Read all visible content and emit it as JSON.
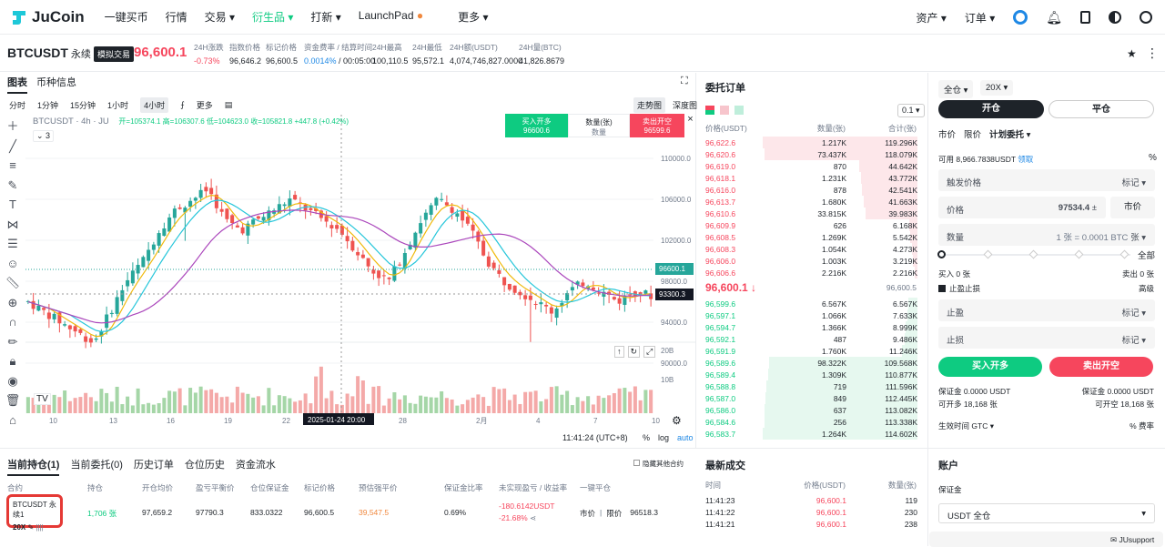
{
  "nav": {
    "brand": "JuCoin",
    "menu": [
      "一键买币",
      "行情",
      "交易",
      "衍生品",
      "打新",
      "LaunchPad",
      "更多"
    ],
    "active": "衍生品",
    "right": [
      "资产",
      "订单"
    ]
  },
  "ticker": {
    "symbol": "BTCUSDT",
    "type": "永续",
    "sim": "模拟交易",
    "price": "96,600.1",
    "stats": [
      {
        "l": "24H涨跌",
        "v": "-0.73%"
      },
      {
        "l": "指数价格",
        "v": "96,646.2"
      },
      {
        "l": "标记价格",
        "v": "96,600.5"
      },
      {
        "l": "资金费率 / 结算时间",
        "v": "0.0014%",
        "v2": "/ 00:05:00"
      },
      {
        "l": "24H最高",
        "v": "100,110.5"
      },
      {
        "l": "24H最低",
        "v": "95,572.1"
      },
      {
        "l": "24H额(USDT)",
        "v": "4,074,746,827.0000"
      },
      {
        "l": "24H量(BTC)",
        "v": "41,826.8679"
      }
    ]
  },
  "chart": {
    "tabs": [
      "图表",
      "币种信息"
    ],
    "intervals": [
      "分时",
      "1分钟",
      "15分钟",
      "1小时",
      "4小时",
      "更多"
    ],
    "active": "4小时",
    "views": [
      "走势图",
      "深度图"
    ],
    "legend": "BTCUSDT · 4h · JU",
    "ohlc": "开=105374.1 高=106307.6 低=104623.0 收=105821.8 +447.8 (+0.42%)",
    "ind": "3",
    "buy": {
      "l": "买入开多",
      "p": "96600.6"
    },
    "qty": {
      "l": "数量(张)",
      "v": "数量"
    },
    "sell": {
      "l": "卖出开空",
      "p": "96599.6"
    },
    "yticks": [
      "110000.0",
      "106000.0",
      "102000.0",
      "98000.0",
      "94000.0",
      "90000.0"
    ],
    "last": "96600.1",
    "cross": "93300.3",
    "vticks": [
      "20B",
      "10B"
    ],
    "xticks": [
      "10",
      "13",
      "16",
      "19",
      "22",
      "28",
      "2月",
      "4",
      "7",
      "10"
    ],
    "xcross": "2025-01-24  20:00",
    "time": "11:41:24 (UTC+8)",
    "opts": [
      "%",
      "log",
      "auto"
    ]
  },
  "book": {
    "title": "委托订单",
    "step": "0.1",
    "hdr": [
      "价格(USDT)",
      "数量(张)",
      "合计(张)"
    ],
    "asks": [
      [
        "96,622.6",
        "1.217K",
        "119.296K"
      ],
      [
        "96,620.6",
        "73.437K",
        "118.079K"
      ],
      [
        "96,619.0",
        "870",
        "44.642K"
      ],
      [
        "96,618.1",
        "1.231K",
        "43.772K"
      ],
      [
        "96,616.0",
        "878",
        "42.541K"
      ],
      [
        "96,613.7",
        "1.680K",
        "41.663K"
      ],
      [
        "96,610.6",
        "33.815K",
        "39.983K"
      ],
      [
        "96,609.9",
        "626",
        "6.168K"
      ],
      [
        "96,608.5",
        "1.269K",
        "5.542K"
      ],
      [
        "96,608.3",
        "1.054K",
        "4.273K"
      ],
      [
        "96,606.0",
        "1.003K",
        "3.219K"
      ],
      [
        "96,606.6",
        "2.216K",
        "2.216K"
      ]
    ],
    "mid": "96,600.1",
    "mark": "96,600.5",
    "bids": [
      [
        "96,599.6",
        "6.567K",
        "6.567K"
      ],
      [
        "96,597.1",
        "1.066K",
        "7.633K"
      ],
      [
        "96,594.7",
        "1.366K",
        "8.999K"
      ],
      [
        "96,592.1",
        "487",
        "9.486K"
      ],
      [
        "96,591.9",
        "1.760K",
        "11.246K"
      ],
      [
        "96,589.6",
        "98.322K",
        "109.568K"
      ],
      [
        "96,589.4",
        "1.309K",
        "110.877K"
      ],
      [
        "96,588.8",
        "719",
        "111.596K"
      ],
      [
        "96,587.0",
        "849",
        "112.445K"
      ],
      [
        "96,586.0",
        "637",
        "113.082K"
      ],
      [
        "96,584.6",
        "256",
        "113.338K"
      ],
      [
        "96,583.7",
        "1.264K",
        "114.602K"
      ]
    ]
  },
  "trade": {
    "mode": "全仓",
    "lev": "20X",
    "open": "开仓",
    "close": "平仓",
    "types": [
      "市价",
      "限价",
      "计划委托"
    ],
    "avail": "可用 8,966.7838USDT",
    "claim": "领取",
    "trigger": "触发价格",
    "mark": "标记",
    "price": "价格",
    "pval": "97534.4",
    "market": "市价",
    "qty": "数量",
    "qph": "1 张 = 0.0001 BTC",
    "unit": "张",
    "all": "全部",
    "buy0": "买入 0 张",
    "sell0": "卖出 0 张",
    "tpsl": "止盈止损",
    "adv": "高级",
    "tp": "止盈",
    "sl": "止损",
    "buyBtn": "买入开多",
    "sellBtn": "卖出开空",
    "marginL": "保证金 0.0000 USDT",
    "marginR": "保证金 0.0000 USDT",
    "canL": "可开多 18,168 张",
    "canR": "可开空 18,168 张",
    "tif": "生效时间",
    "gtc": "GTC",
    "fee": "费率"
  },
  "positions": {
    "tabs": [
      "当前持仓(1)",
      "当前委托(0)",
      "历史订单",
      "仓位历史",
      "资金流水"
    ],
    "hide": "隐藏其他合约",
    "hdr": [
      "合约",
      "持仓",
      "开仓均价",
      "盈亏平衡价",
      "仓位保证金",
      "标记价格",
      "预估强平价",
      "保证金比率",
      "未实现盈亏 / 收益率",
      "一键平仓"
    ],
    "row": {
      "sym": "BTCUSDT",
      "type": "永续1",
      "lev": "20X",
      "qty": "1,706 张",
      "avg": "97,659.2",
      "be": "97790.3",
      "margin": "833.0322",
      "mark": "96,600.5",
      "liq": "39,547.5",
      "ratio": "0.69%",
      "pnl": "-180.6142USDT",
      "roe": "-21.68%",
      "mkt": "市价",
      "lim": "限价",
      "lp": "96518.3"
    }
  },
  "latest": {
    "title": "最新成交",
    "hdr": [
      "时间",
      "价格(USDT)",
      "数量(张)"
    ],
    "rows": [
      [
        "11:41:23",
        "96,600.1",
        "119"
      ],
      [
        "11:41:22",
        "96,600.1",
        "230"
      ],
      [
        "11:41:21",
        "96,600.1",
        "238"
      ]
    ]
  },
  "account": {
    "title": "账户",
    "margin": "保证金",
    "sel": "USDT 全仓",
    "support": "JUsupport"
  }
}
